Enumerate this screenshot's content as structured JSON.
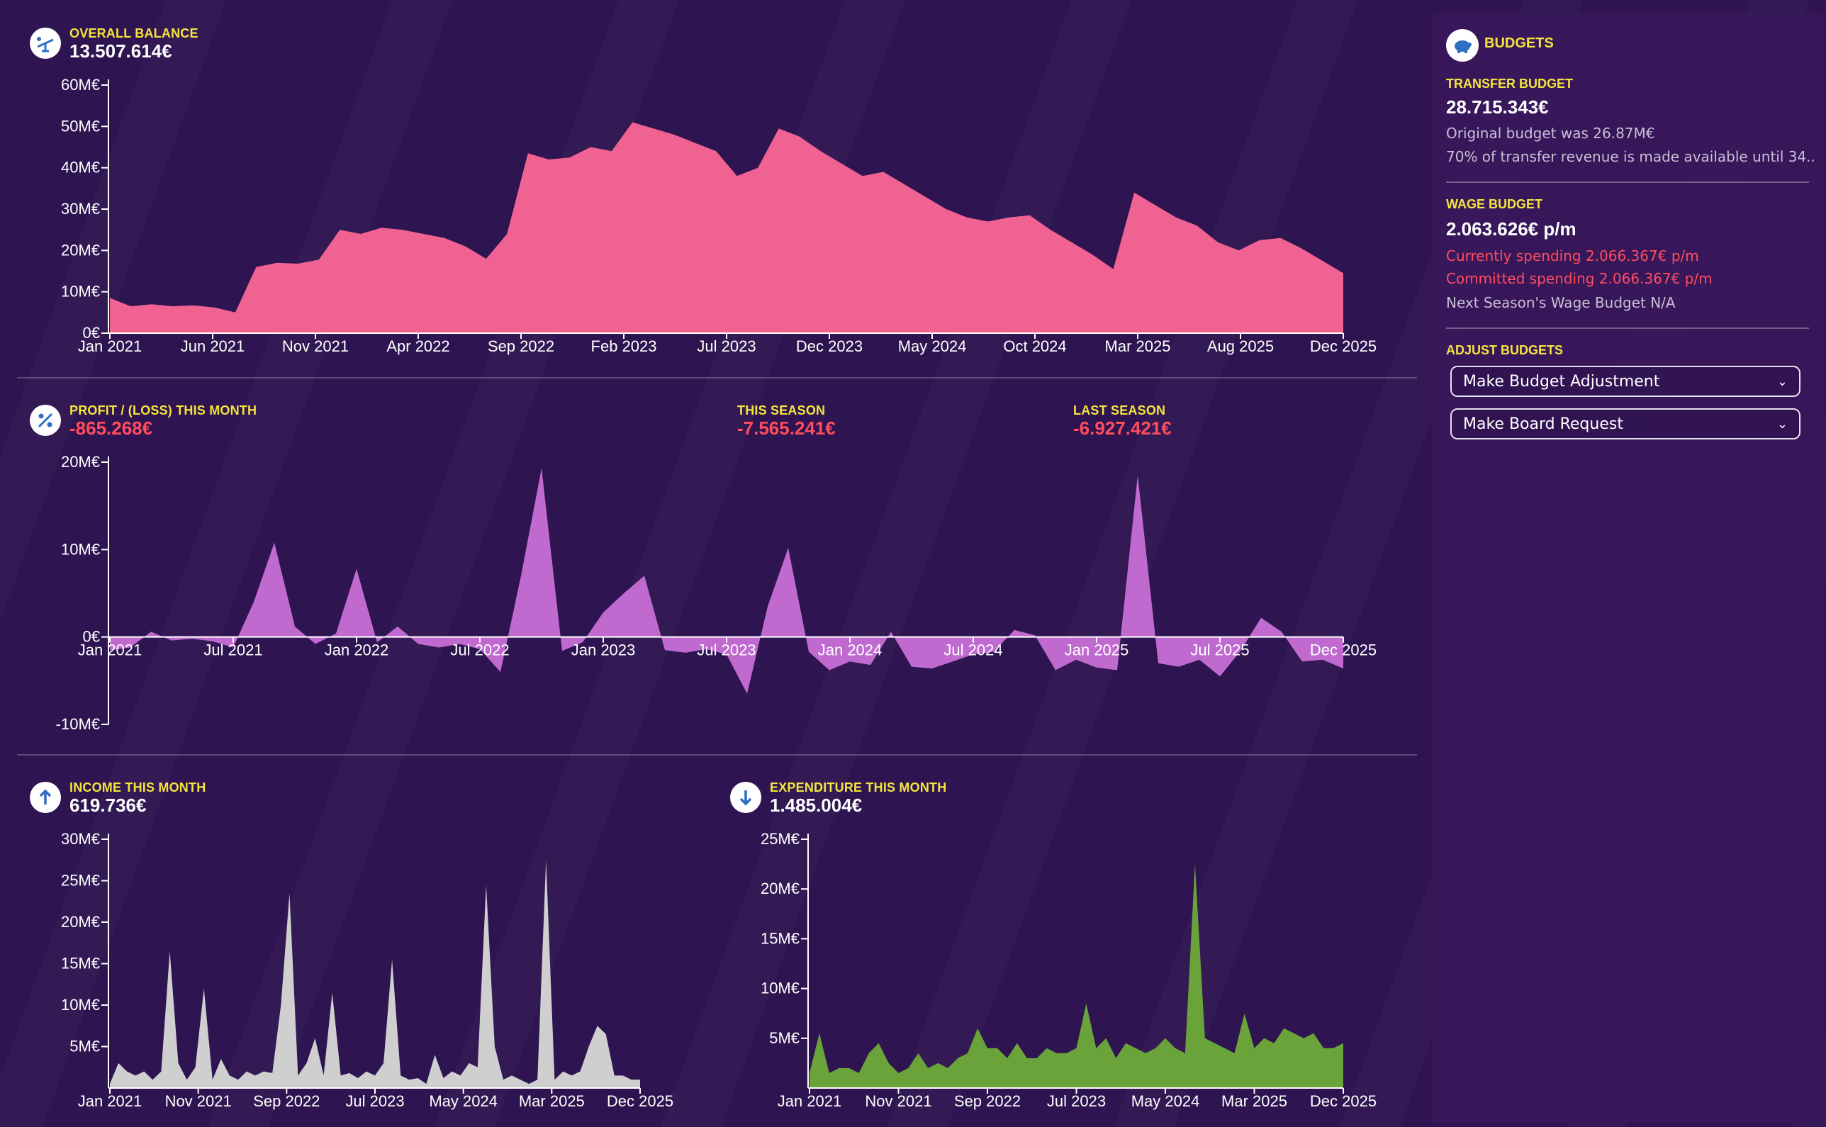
{
  "overall_balance": {
    "label": "OVERALL BALANCE",
    "value": "13.507.614€"
  },
  "profit_loss": {
    "label": "PROFIT / (LOSS) THIS MONTH",
    "value": "-865.268€",
    "this_season_label": "THIS SEASON",
    "this_season_value": "-7.565.241€",
    "last_season_label": "LAST SEASON",
    "last_season_value": "-6.927.421€"
  },
  "income": {
    "label": "INCOME THIS MONTH",
    "value": "619.736€"
  },
  "expenditure": {
    "label": "EXPENDITURE THIS MONTH",
    "value": "1.485.004€"
  },
  "budgets": {
    "title": "BUDGETS",
    "transfer_label": "TRANSFER BUDGET",
    "transfer_value": "28.715.343€",
    "transfer_note1": "Original budget was 26.87M€",
    "transfer_note2": "70% of transfer revenue is made available until 34....",
    "wage_label": "WAGE BUDGET",
    "wage_value": "2.063.626€ p/m",
    "wage_current": "Currently spending 2.066.367€ p/m",
    "wage_committed": "Committed spending 2.066.367€ p/m",
    "wage_next": "Next Season's Wage Budget N/A",
    "adjust_label": "ADJUST BUDGETS",
    "adjust_button": "Make Budget Adjustment",
    "board_button": "Make Board Request"
  },
  "colors": {
    "balance": "#f06292",
    "profit": "#c06ad0",
    "income": "#cfcfcf",
    "expenditure": "#6aa33a",
    "accent": "#f4e53d",
    "negative": "#ff4d5e"
  },
  "chart_data": [
    {
      "type": "area",
      "name": "overall-balance",
      "ylim": [
        0,
        60
      ],
      "yticks": [
        "0€",
        "10M€",
        "20M€",
        "30M€",
        "40M€",
        "50M€",
        "60M€"
      ],
      "xticks": [
        "Jan 2021",
        "Jun 2021",
        "Nov 2021",
        "Apr 2022",
        "Sep 2022",
        "Feb 2023",
        "Jul 2023",
        "Dec 2023",
        "May 2024",
        "Oct 2024",
        "Mar 2025",
        "Aug 2025",
        "Dec 2025"
      ],
      "values": [
        8.5,
        6.5,
        7,
        6.5,
        6.7,
        6.2,
        5,
        16,
        17,
        16.8,
        17.8,
        25,
        24,
        25.5,
        25,
        24,
        23,
        21,
        18,
        24,
        43.5,
        42,
        42.5,
        45,
        44,
        51,
        49.5,
        48,
        46,
        44,
        38,
        40,
        49.5,
        47.5,
        44,
        41,
        38,
        39,
        36,
        33,
        30,
        28,
        27,
        28,
        28.5,
        25,
        22,
        19,
        15.5,
        34,
        31,
        28,
        26,
        22,
        20,
        22.5,
        23,
        20.5,
        17.5,
        14.5
      ]
    },
    {
      "type": "area",
      "name": "profit-loss",
      "ylim": [
        -10,
        20
      ],
      "yticks": [
        "-10M€",
        "0€",
        "10M€",
        "20M€"
      ],
      "xticks": [
        "Jan 2021",
        "Jul 2021",
        "Jan 2022",
        "Jul 2022",
        "Jan 2023",
        "Jul 2023",
        "Jan 2024",
        "Jul 2024",
        "Jan 2025",
        "Jul 2025",
        "Dec 2025"
      ],
      "values": [
        -1.5,
        -1.2,
        0.6,
        -0.4,
        -0.2,
        -0.5,
        -1.2,
        4,
        10.8,
        1.2,
        -0.8,
        0.4,
        7.8,
        -0.6,
        1.2,
        -0.8,
        -1.2,
        -0.8,
        -1.4,
        -4,
        7,
        19.3,
        -1.6,
        -0.6,
        2.8,
        5,
        7,
        -1.5,
        -1.8,
        -1.4,
        -2,
        -6.5,
        3.5,
        10.2,
        -1.7,
        -3.8,
        -2.8,
        -3.2,
        0.6,
        -3.4,
        -3.6,
        -2.8,
        -2,
        -1.7,
        0.8,
        0.2,
        -3.8,
        -2.6,
        -3.5,
        -3.8,
        18.5,
        -3,
        -3.4,
        -2.6,
        -4.5,
        -1.6,
        2.2,
        0.6,
        -2.8,
        -2.6,
        -3.6
      ]
    },
    {
      "type": "area",
      "name": "income",
      "ylim": [
        0,
        30
      ],
      "yticks": [
        "5M€",
        "10M€",
        "15M€",
        "20M€",
        "25M€",
        "30M€"
      ],
      "xticks": [
        "Jan 2021",
        "Nov 2021",
        "Sep 2022",
        "Jul 2023",
        "May 2024",
        "Mar 2025",
        "Dec 2025"
      ],
      "values": [
        0.5,
        3,
        2,
        1.5,
        2,
        1,
        2,
        16.5,
        3,
        1,
        2.5,
        12,
        1,
        3.5,
        1.5,
        1,
        2,
        1.5,
        2,
        1.8,
        10,
        23.5,
        1.5,
        3,
        6,
        1.5,
        11.5,
        1.5,
        1.8,
        1.2,
        2,
        1.5,
        3,
        15.5,
        1.5,
        1,
        1.2,
        0.5,
        4,
        1.2,
        2,
        1.5,
        3,
        2.5,
        24.5,
        5,
        1,
        1.5,
        1,
        0.5,
        1,
        27.5,
        1,
        2,
        1.5,
        2,
        5,
        7.5,
        6.5,
        1.5,
        1.5,
        1,
        1
      ]
    },
    {
      "type": "area",
      "name": "expenditure",
      "ylim": [
        0,
        25
      ],
      "yticks": [
        "5M€",
        "10M€",
        "15M€",
        "20M€",
        "25M€"
      ],
      "xticks": [
        "Jan 2021",
        "Nov 2021",
        "Sep 2022",
        "Jul 2023",
        "May 2024",
        "Mar 2025",
        "Dec 2025"
      ],
      "values": [
        1.5,
        5.5,
        1.5,
        2,
        2,
        1.5,
        3.5,
        4.5,
        2.5,
        1.5,
        2,
        3.5,
        2,
        2.5,
        2,
        3,
        3.5,
        6,
        4,
        4,
        3,
        4.5,
        3,
        3,
        4,
        3.5,
        3.5,
        4,
        8.5,
        4,
        5,
        3,
        4.5,
        4,
        3.5,
        4,
        5,
        4,
        3.5,
        22.5,
        5,
        4.5,
        4,
        3.5,
        7.5,
        4,
        5,
        4.5,
        6,
        5.5,
        5,
        5.5,
        4,
        4,
        4.5
      ]
    }
  ]
}
